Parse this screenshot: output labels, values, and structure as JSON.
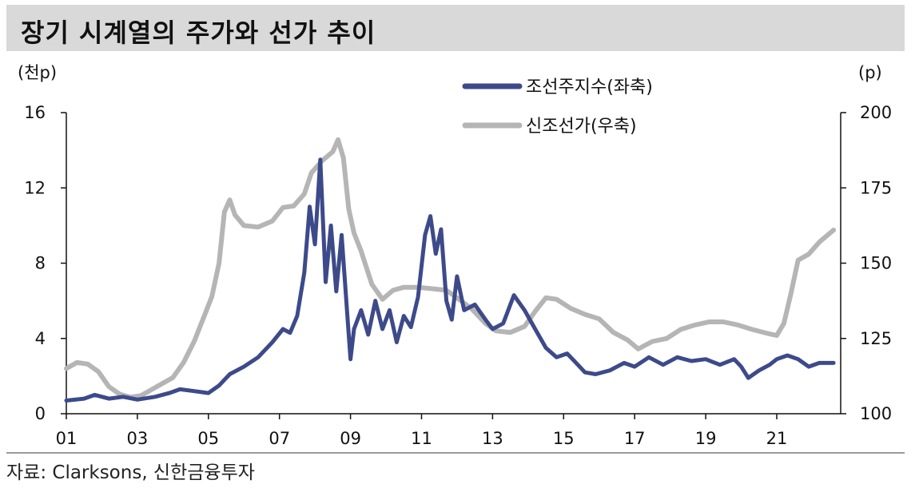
{
  "title": "장기 시계열의 주가와 선가 추이",
  "source": "자료: Clarksons, 신한금융투자",
  "chart_data": {
    "type": "line",
    "title": "장기 시계열의 주가와 선가 추이",
    "left_axis": {
      "unit": "(천p)",
      "ylim": [
        0,
        16
      ],
      "ticks": [
        "0",
        "4",
        "8",
        "12",
        "16"
      ]
    },
    "right_axis": {
      "unit": "(p)",
      "ylim": [
        100,
        200
      ],
      "ticks": [
        "100",
        "125",
        "150",
        "175",
        "200"
      ]
    },
    "x_ticks": [
      "01",
      "03",
      "05",
      "07",
      "09",
      "11",
      "13",
      "15",
      "17",
      "19",
      "21"
    ],
    "x_range": [
      2001,
      2022.8
    ],
    "legend_placement": "top-center",
    "series": [
      {
        "name": "조선주지수(좌축)",
        "axis": "left",
        "color": "#3d4a8a",
        "points": [
          [
            2001.0,
            0.7
          ],
          [
            2001.5,
            0.8
          ],
          [
            2001.8,
            1.0
          ],
          [
            2002.2,
            0.8
          ],
          [
            2002.6,
            0.9
          ],
          [
            2003.0,
            0.75
          ],
          [
            2003.5,
            0.9
          ],
          [
            2003.9,
            1.1
          ],
          [
            2004.2,
            1.3
          ],
          [
            2004.6,
            1.2
          ],
          [
            2005.0,
            1.1
          ],
          [
            2005.3,
            1.5
          ],
          [
            2005.6,
            2.1
          ],
          [
            2006.0,
            2.5
          ],
          [
            2006.4,
            3.0
          ],
          [
            2006.8,
            3.8
          ],
          [
            2007.1,
            4.5
          ],
          [
            2007.3,
            4.3
          ],
          [
            2007.5,
            5.2
          ],
          [
            2007.7,
            7.5
          ],
          [
            2007.85,
            11.0
          ],
          [
            2008.0,
            9.0
          ],
          [
            2008.15,
            13.5
          ],
          [
            2008.3,
            7.0
          ],
          [
            2008.45,
            10.0
          ],
          [
            2008.6,
            6.5
          ],
          [
            2008.75,
            9.5
          ],
          [
            2008.9,
            5.5
          ],
          [
            2009.0,
            2.9
          ],
          [
            2009.1,
            4.5
          ],
          [
            2009.3,
            5.5
          ],
          [
            2009.5,
            4.2
          ],
          [
            2009.7,
            6.0
          ],
          [
            2009.9,
            4.5
          ],
          [
            2010.1,
            5.5
          ],
          [
            2010.3,
            3.8
          ],
          [
            2010.5,
            5.2
          ],
          [
            2010.7,
            4.6
          ],
          [
            2010.9,
            6.2
          ],
          [
            2011.1,
            9.5
          ],
          [
            2011.25,
            10.5
          ],
          [
            2011.4,
            8.5
          ],
          [
            2011.55,
            9.8
          ],
          [
            2011.7,
            6.0
          ],
          [
            2011.85,
            5.0
          ],
          [
            2012.0,
            7.3
          ],
          [
            2012.2,
            5.5
          ],
          [
            2012.5,
            5.8
          ],
          [
            2012.8,
            5.0
          ],
          [
            2013.0,
            4.5
          ],
          [
            2013.3,
            4.8
          ],
          [
            2013.6,
            6.3
          ],
          [
            2013.9,
            5.5
          ],
          [
            2014.2,
            4.5
          ],
          [
            2014.5,
            3.5
          ],
          [
            2014.8,
            3.0
          ],
          [
            2015.1,
            3.2
          ],
          [
            2015.4,
            2.6
          ],
          [
            2015.6,
            2.2
          ],
          [
            2015.9,
            2.1
          ],
          [
            2016.3,
            2.3
          ],
          [
            2016.7,
            2.7
          ],
          [
            2017.0,
            2.5
          ],
          [
            2017.4,
            3.0
          ],
          [
            2017.8,
            2.6
          ],
          [
            2018.2,
            3.0
          ],
          [
            2018.6,
            2.8
          ],
          [
            2019.0,
            2.9
          ],
          [
            2019.4,
            2.6
          ],
          [
            2019.8,
            2.9
          ],
          [
            2020.0,
            2.5
          ],
          [
            2020.2,
            1.9
          ],
          [
            2020.5,
            2.3
          ],
          [
            2020.8,
            2.6
          ],
          [
            2021.0,
            2.9
          ],
          [
            2021.3,
            3.1
          ],
          [
            2021.6,
            2.9
          ],
          [
            2021.9,
            2.5
          ],
          [
            2022.2,
            2.7
          ],
          [
            2022.6,
            2.7
          ]
        ]
      },
      {
        "name": "신조선가(우축)",
        "axis": "right",
        "color": "#b5b5b5",
        "points": [
          [
            2001.0,
            115
          ],
          [
            2001.3,
            117
          ],
          [
            2001.6,
            116.5
          ],
          [
            2001.9,
            114
          ],
          [
            2002.2,
            109
          ],
          [
            2002.5,
            106.5
          ],
          [
            2002.8,
            105.5
          ],
          [
            2003.1,
            106
          ],
          [
            2003.4,
            108
          ],
          [
            2003.7,
            110
          ],
          [
            2004.0,
            112
          ],
          [
            2004.3,
            117
          ],
          [
            2004.6,
            124
          ],
          [
            2004.9,
            133
          ],
          [
            2005.1,
            139
          ],
          [
            2005.3,
            150
          ],
          [
            2005.45,
            167
          ],
          [
            2005.6,
            171
          ],
          [
            2005.75,
            166
          ],
          [
            2006.0,
            162.5
          ],
          [
            2006.4,
            162
          ],
          [
            2006.8,
            164
          ],
          [
            2007.1,
            168.5
          ],
          [
            2007.4,
            169
          ],
          [
            2007.7,
            173
          ],
          [
            2007.9,
            180
          ],
          [
            2008.2,
            184
          ],
          [
            2008.5,
            187
          ],
          [
            2008.65,
            191
          ],
          [
            2008.8,
            185
          ],
          [
            2008.95,
            168
          ],
          [
            2009.1,
            160
          ],
          [
            2009.3,
            154
          ],
          [
            2009.6,
            143
          ],
          [
            2009.9,
            138
          ],
          [
            2010.2,
            141
          ],
          [
            2010.5,
            142
          ],
          [
            2010.9,
            142
          ],
          [
            2011.3,
            141.5
          ],
          [
            2011.7,
            141
          ],
          [
            2012.0,
            138.5
          ],
          [
            2012.4,
            135
          ],
          [
            2012.8,
            130
          ],
          [
            2013.1,
            127.5
          ],
          [
            2013.5,
            127
          ],
          [
            2013.9,
            129
          ],
          [
            2014.2,
            134
          ],
          [
            2014.5,
            138.5
          ],
          [
            2014.8,
            138
          ],
          [
            2015.2,
            135
          ],
          [
            2015.6,
            133
          ],
          [
            2016.0,
            131.5
          ],
          [
            2016.4,
            127
          ],
          [
            2016.8,
            124.5
          ],
          [
            2017.1,
            121.5
          ],
          [
            2017.5,
            124
          ],
          [
            2017.9,
            125
          ],
          [
            2018.3,
            128
          ],
          [
            2018.7,
            129.5
          ],
          [
            2019.1,
            130.5
          ],
          [
            2019.5,
            130.5
          ],
          [
            2019.9,
            129.5
          ],
          [
            2020.3,
            128
          ],
          [
            2020.8,
            126.5
          ],
          [
            2021.0,
            126
          ],
          [
            2021.2,
            130
          ],
          [
            2021.4,
            140
          ],
          [
            2021.6,
            151
          ],
          [
            2021.9,
            153
          ],
          [
            2022.2,
            157
          ],
          [
            2022.6,
            161
          ]
        ]
      }
    ]
  }
}
